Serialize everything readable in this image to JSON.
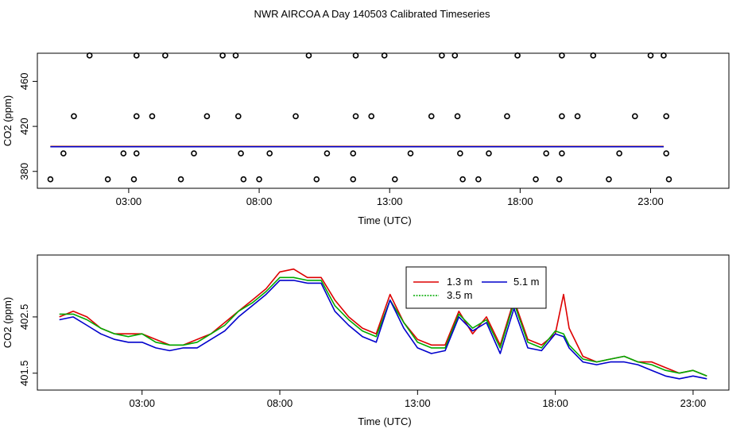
{
  "page_title": "NWR AIRCOA A  Day 140503  Calibrated Timeseries",
  "chart_data": [
    {
      "type": "scatter",
      "id": "top-panel",
      "xlabel": "Time (UTC)",
      "ylabel": "CO2 (ppm)",
      "xlim": [
        -0.5,
        26.0
      ],
      "ylim": [
        365,
        485
      ],
      "x_ticks": [
        3,
        8,
        13,
        18,
        23
      ],
      "x_tick_labels": [
        "03:00",
        "08:00",
        "13:00",
        "18:00",
        "23:00"
      ],
      "y_ticks": [
        380,
        420,
        460
      ],
      "y_tick_labels": [
        "380",
        "420",
        "460"
      ],
      "calibration_points": [
        {
          "x": 1.5,
          "y": 483
        },
        {
          "x": 3.3,
          "y": 483
        },
        {
          "x": 4.4,
          "y": 483
        },
        {
          "x": 6.6,
          "y": 483
        },
        {
          "x": 7.1,
          "y": 483
        },
        {
          "x": 9.9,
          "y": 483
        },
        {
          "x": 11.7,
          "y": 483
        },
        {
          "x": 12.8,
          "y": 483
        },
        {
          "x": 15.0,
          "y": 483
        },
        {
          "x": 15.5,
          "y": 483
        },
        {
          "x": 17.9,
          "y": 483
        },
        {
          "x": 19.6,
          "y": 483
        },
        {
          "x": 20.8,
          "y": 483
        },
        {
          "x": 23.0,
          "y": 483
        },
        {
          "x": 23.5,
          "y": 483
        },
        {
          "x": 0.9,
          "y": 429
        },
        {
          "x": 3.3,
          "y": 429
        },
        {
          "x": 3.9,
          "y": 429
        },
        {
          "x": 6.0,
          "y": 429
        },
        {
          "x": 7.2,
          "y": 429
        },
        {
          "x": 9.4,
          "y": 429
        },
        {
          "x": 11.7,
          "y": 429
        },
        {
          "x": 12.3,
          "y": 429
        },
        {
          "x": 14.6,
          "y": 429
        },
        {
          "x": 15.6,
          "y": 429
        },
        {
          "x": 17.5,
          "y": 429
        },
        {
          "x": 19.6,
          "y": 429
        },
        {
          "x": 20.2,
          "y": 429
        },
        {
          "x": 22.4,
          "y": 429
        },
        {
          "x": 23.6,
          "y": 429
        },
        {
          "x": 0.5,
          "y": 396
        },
        {
          "x": 2.8,
          "y": 396
        },
        {
          "x": 3.3,
          "y": 396
        },
        {
          "x": 5.5,
          "y": 396
        },
        {
          "x": 7.3,
          "y": 396
        },
        {
          "x": 8.4,
          "y": 396
        },
        {
          "x": 10.6,
          "y": 396
        },
        {
          "x": 11.6,
          "y": 396
        },
        {
          "x": 13.8,
          "y": 396
        },
        {
          "x": 15.7,
          "y": 396
        },
        {
          "x": 16.8,
          "y": 396
        },
        {
          "x": 19.0,
          "y": 396
        },
        {
          "x": 19.6,
          "y": 396
        },
        {
          "x": 21.8,
          "y": 396
        },
        {
          "x": 23.6,
          "y": 396
        },
        {
          "x": 0.0,
          "y": 373
        },
        {
          "x": 2.2,
          "y": 373
        },
        {
          "x": 3.2,
          "y": 373
        },
        {
          "x": 5.0,
          "y": 373
        },
        {
          "x": 7.4,
          "y": 373
        },
        {
          "x": 8.0,
          "y": 373
        },
        {
          "x": 10.2,
          "y": 373
        },
        {
          "x": 11.6,
          "y": 373
        },
        {
          "x": 13.2,
          "y": 373
        },
        {
          "x": 15.8,
          "y": 373
        },
        {
          "x": 16.4,
          "y": 373
        },
        {
          "x": 18.6,
          "y": 373
        },
        {
          "x": 19.5,
          "y": 373
        },
        {
          "x": 21.4,
          "y": 373
        },
        {
          "x": 23.7,
          "y": 373
        }
      ],
      "series": [
        {
          "name": "1.3 m",
          "color": "#dd0000",
          "x": [
            0,
            23.5
          ],
          "y": [
            402.2,
            402.2
          ]
        },
        {
          "name": "3.5 m",
          "color": "#00aa00",
          "x": [
            0,
            23.5
          ],
          "y": [
            402.0,
            402.0
          ]
        },
        {
          "name": "5.1 m",
          "color": "#0000cc",
          "x": [
            0,
            23.5
          ],
          "y": [
            401.9,
            401.9
          ]
        }
      ]
    },
    {
      "type": "line",
      "id": "bottom-panel",
      "xlabel": "Time (UTC)",
      "ylabel": "CO2 (ppm)",
      "xlim": [
        -0.8,
        24.3
      ],
      "ylim": [
        401.2,
        403.6
      ],
      "x_ticks": [
        3,
        8,
        13,
        18,
        23
      ],
      "x_tick_labels": [
        "03:00",
        "08:00",
        "13:00",
        "18:00",
        "23:00"
      ],
      "y_ticks": [
        401.5,
        402.5
      ],
      "y_tick_labels": [
        "401.5",
        "402.5"
      ],
      "legend": {
        "position": "top-center",
        "entries": [
          "1.3 m",
          "3.5 m",
          "5.1 m"
        ]
      },
      "series": [
        {
          "name": "1.3 m",
          "color": "#dd0000",
          "x": [
            0,
            0.5,
            1,
            1.5,
            2,
            2.5,
            3,
            3.5,
            4,
            4.5,
            5,
            5.5,
            6,
            6.5,
            7,
            7.5,
            8,
            8.5,
            9,
            9.5,
            10,
            10.5,
            11,
            11.5,
            12,
            12.5,
            13,
            13.5,
            14,
            14.5,
            15,
            15.5,
            16,
            16.5,
            17,
            17.5,
            18,
            18.3,
            18.5,
            19,
            19.5,
            20,
            20.5,
            21,
            21.5,
            22,
            22.5,
            23,
            23.5
          ],
          "y": [
            402.5,
            402.6,
            402.5,
            402.3,
            402.2,
            402.2,
            402.2,
            402.1,
            402.0,
            402.0,
            402.1,
            402.2,
            402.4,
            402.6,
            402.8,
            403.0,
            403.3,
            403.35,
            403.2,
            403.2,
            402.8,
            402.5,
            402.3,
            402.2,
            402.9,
            402.4,
            402.1,
            402.0,
            402.0,
            402.6,
            402.2,
            402.5,
            402.0,
            402.8,
            402.1,
            402.0,
            402.2,
            402.9,
            402.3,
            401.8,
            401.7,
            401.75,
            401.8,
            401.7,
            401.7,
            401.6,
            401.5,
            401.55,
            401.45
          ]
        },
        {
          "name": "3.5 m",
          "color": "#00aa00",
          "x": [
            0,
            0.5,
            1,
            1.5,
            2,
            2.5,
            3,
            3.5,
            4,
            4.5,
            5,
            5.5,
            6,
            6.5,
            7,
            7.5,
            8,
            8.5,
            9,
            9.5,
            10,
            10.5,
            11,
            11.5,
            12,
            12.5,
            13,
            13.5,
            14,
            14.5,
            15,
            15.5,
            16,
            16.5,
            17,
            17.5,
            18,
            18.3,
            18.5,
            19,
            19.5,
            20,
            20.5,
            21,
            21.5,
            22,
            22.5,
            23,
            23.5
          ],
          "y": [
            402.55,
            402.55,
            402.45,
            402.3,
            402.2,
            402.15,
            402.2,
            402.05,
            402.0,
            402.0,
            402.05,
            402.2,
            402.35,
            402.6,
            402.75,
            402.95,
            403.2,
            403.2,
            403.15,
            403.15,
            402.7,
            402.45,
            402.25,
            402.15,
            402.8,
            402.4,
            402.05,
            401.95,
            401.95,
            402.55,
            402.3,
            402.45,
            401.95,
            402.75,
            402.05,
            401.95,
            402.25,
            402.2,
            402.0,
            401.75,
            401.7,
            401.75,
            401.8,
            401.7,
            401.65,
            401.55,
            401.5,
            401.55,
            401.45
          ]
        },
        {
          "name": "5.1 m",
          "color": "#0000cc",
          "x": [
            0,
            0.5,
            1,
            1.5,
            2,
            2.5,
            3,
            3.5,
            4,
            4.5,
            5,
            5.5,
            6,
            6.5,
            7,
            7.5,
            8,
            8.5,
            9,
            9.5,
            10,
            10.5,
            11,
            11.5,
            12,
            12.5,
            13,
            13.5,
            14,
            14.5,
            15,
            15.5,
            16,
            16.5,
            17,
            17.5,
            18,
            18.3,
            18.5,
            19,
            19.5,
            20,
            20.5,
            21,
            21.5,
            22,
            22.5,
            23,
            23.5
          ],
          "y": [
            402.45,
            402.5,
            402.35,
            402.2,
            402.1,
            402.05,
            402.05,
            401.95,
            401.9,
            401.95,
            401.95,
            402.1,
            402.25,
            402.5,
            402.7,
            402.9,
            403.15,
            403.15,
            403.1,
            403.1,
            402.6,
            402.35,
            402.15,
            402.05,
            402.8,
            402.3,
            401.95,
            401.85,
            401.9,
            402.5,
            402.25,
            402.4,
            401.85,
            402.65,
            401.95,
            401.9,
            402.2,
            402.15,
            401.95,
            401.7,
            401.65,
            401.7,
            401.7,
            401.65,
            401.55,
            401.45,
            401.4,
            401.45,
            401.4
          ]
        }
      ]
    }
  ]
}
